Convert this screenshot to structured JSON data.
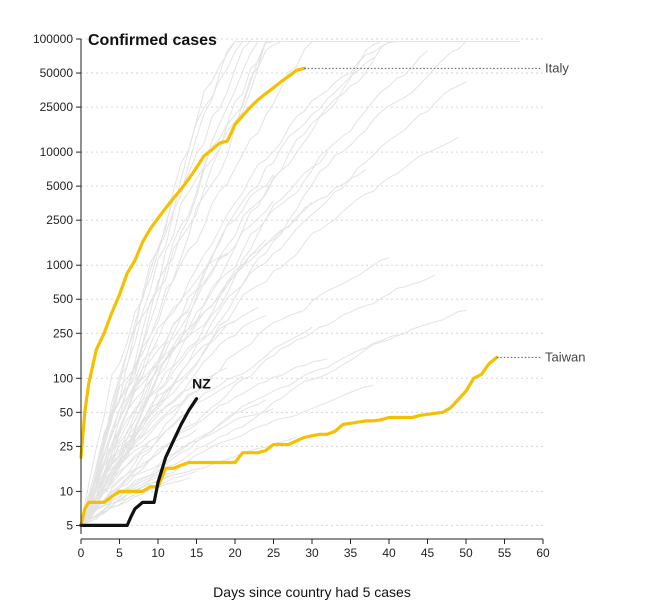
{
  "chart_data": {
    "type": "line",
    "title": "Confirmed cases",
    "xlabel": "Days since country had 5 cases",
    "ylabel": "",
    "y_scale": "log",
    "xlim": [
      0,
      60
    ],
    "ylim": [
      4.2,
      100000
    ],
    "x_ticks": [
      "0",
      "5",
      "10",
      "15",
      "20",
      "25",
      "30",
      "35",
      "40",
      "45",
      "50",
      "55",
      "60"
    ],
    "y_ticks": [
      "100000",
      "50000",
      "25000",
      "10000",
      "5000",
      "2500",
      "1000",
      "500",
      "250",
      "100",
      "50",
      "25",
      "10",
      "5"
    ],
    "y_tick_values": [
      100000,
      50000,
      25000,
      10000,
      5000,
      2500,
      1000,
      500,
      250,
      100,
      50,
      25,
      10,
      5
    ],
    "grid": true,
    "colors": {
      "highlight": "#f5c000",
      "nz": "#111111",
      "background_lines": "#e3e3e3",
      "grid": "#d6d6d6"
    },
    "series": [
      {
        "name": "Italy",
        "x": [
          0,
          0.5,
          1,
          2,
          3,
          4,
          5,
          6,
          7,
          8,
          9,
          10,
          11,
          12,
          13,
          14,
          15,
          16,
          17,
          18,
          19,
          20,
          21,
          22,
          23,
          24,
          25,
          26,
          27,
          28,
          29
        ],
        "values": [
          20,
          50,
          90,
          180,
          250,
          380,
          550,
          850,
          1100,
          1600,
          2100,
          2600,
          3200,
          3900,
          4700,
          5800,
          7300,
          9300,
          10500,
          12000,
          12500,
          17500,
          21000,
          25000,
          29000,
          33000,
          37000,
          42000,
          47000,
          53000,
          55000
        ]
      },
      {
        "name": "Taiwan",
        "x": [
          0,
          0.5,
          1,
          2,
          3,
          4,
          5,
          6,
          7,
          8,
          9,
          10,
          11,
          12,
          13,
          14,
          15,
          16,
          17,
          18,
          19,
          20,
          21,
          22,
          23,
          24,
          25,
          26,
          27,
          28,
          29,
          30,
          31,
          32,
          33,
          34,
          35,
          36,
          37,
          38,
          39,
          40,
          41,
          42,
          43,
          44,
          45,
          46,
          47,
          48,
          49,
          50,
          51,
          52,
          53,
          54
        ],
        "values": [
          5,
          7,
          8,
          8,
          8,
          9,
          10,
          10,
          10,
          10,
          11,
          11,
          16,
          16,
          17,
          18,
          18,
          18,
          18,
          18,
          18,
          18,
          22,
          22,
          22,
          23,
          26,
          26,
          26,
          28,
          30,
          31,
          32,
          32,
          34,
          39,
          40,
          41,
          42,
          42,
          43,
          45,
          45,
          45,
          45,
          47,
          48,
          49,
          50,
          55,
          65,
          77,
          100,
          108,
          135,
          153
        ]
      },
      {
        "name": "NZ",
        "x": [
          0,
          1,
          2,
          3,
          4,
          5,
          6,
          6.5,
          7,
          8,
          8.5,
          9,
          9.5,
          10,
          11,
          12,
          13,
          14,
          15
        ],
        "values": [
          5,
          5,
          5,
          5,
          5,
          5,
          5,
          6,
          7,
          8,
          8,
          8,
          8,
          12,
          20,
          28,
          39,
          52,
          66
        ]
      }
    ]
  }
}
